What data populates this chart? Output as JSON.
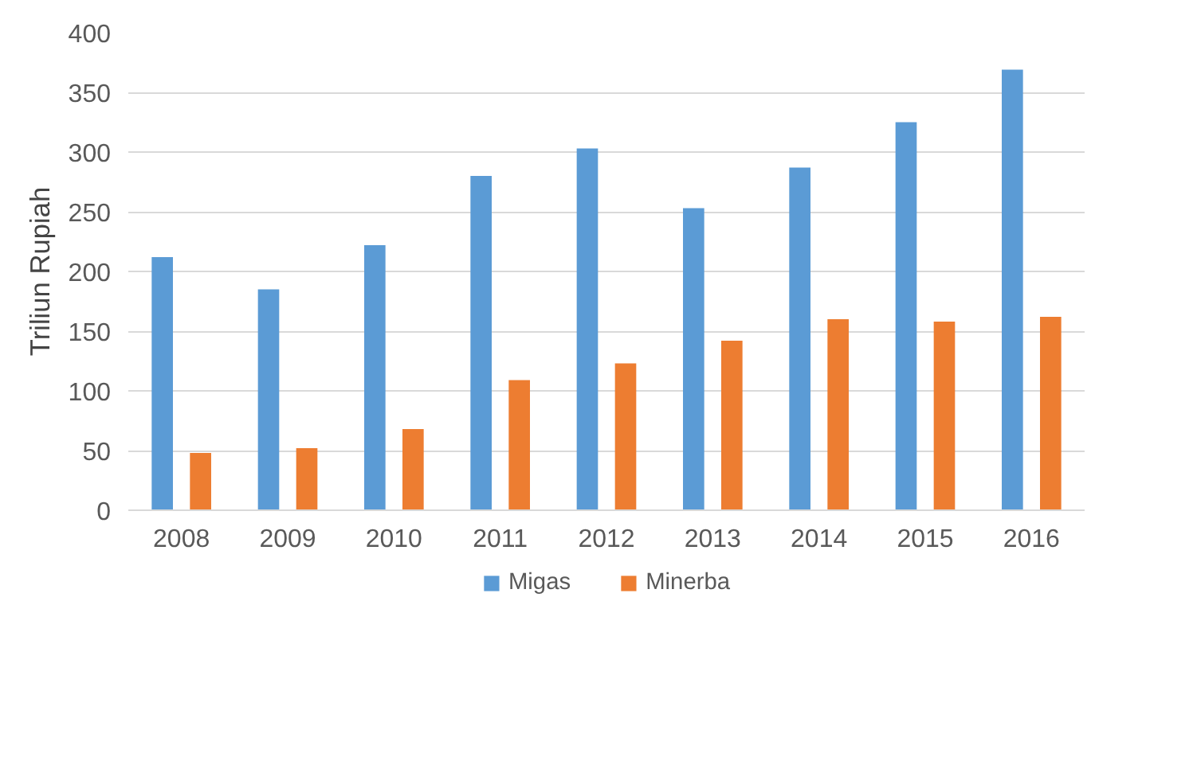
{
  "chart_data": {
    "type": "bar",
    "ylabel": "Triliun Rupiah",
    "categories": [
      "2008",
      "2009",
      "2010",
      "2011",
      "2012",
      "2013",
      "2014",
      "2015",
      "2016"
    ],
    "series": [
      {
        "name": "Migas",
        "color": "#5b9bd5",
        "values": [
          212,
          185,
          222,
          280,
          303,
          253,
          287,
          325,
          369
        ]
      },
      {
        "name": "Minerba",
        "color": "#ed7d31",
        "values": [
          48,
          52,
          68,
          109,
          123,
          142,
          160,
          158,
          162
        ]
      }
    ],
    "ylim": [
      0,
      400
    ],
    "yticks": [
      0,
      50,
      100,
      150,
      200,
      250,
      300,
      350,
      400
    ],
    "grid": "y",
    "legend": "bottom"
  }
}
